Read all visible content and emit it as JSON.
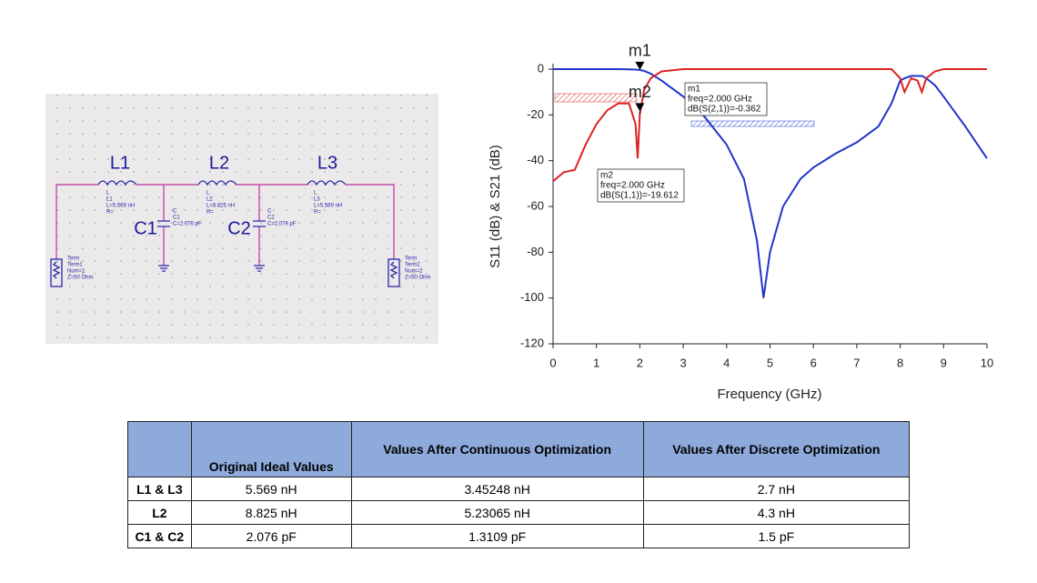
{
  "schematic": {
    "labels": [
      "L1",
      "L2",
      "L3",
      "C1",
      "C2"
    ],
    "L1": [
      "L",
      "L1",
      "L=5.569 nH",
      "R="
    ],
    "L2": [
      "L",
      "L2",
      "L=8.825 nH",
      "R="
    ],
    "L3": [
      "L",
      "L3",
      "L=5.569 nH",
      "R="
    ],
    "C1": [
      "C",
      "C1",
      "C=2.076 pF"
    ],
    "C2": [
      "C",
      "C2",
      "C=2.076 pF"
    ],
    "Term1": [
      "Term",
      "Term1",
      "Num=1",
      "Z=50 Ohm"
    ],
    "Term2": [
      "Term",
      "Term2",
      "Num=2",
      "Z=50 Ohm"
    ]
  },
  "chart_data": {
    "type": "line",
    "xlabel": "Frequency (GHz)",
    "ylabel": "S11 (dB) & S21 (dB)",
    "x": [
      0,
      0.25,
      0.5,
      0.75,
      1,
      1.25,
      1.5,
      1.75,
      1.9,
      1.95,
      2,
      2.1,
      2.25,
      2.5,
      3,
      3.5,
      4,
      4.4,
      4.7,
      4.85,
      5,
      5.3,
      5.7,
      6,
      6.5,
      7,
      7.5,
      7.8,
      8,
      8.1,
      8.25,
      8.4,
      8.5,
      8.6,
      8.8,
      9,
      9.5,
      10
    ],
    "series": [
      {
        "color": "#2233cc",
        "values": [
          0,
          0,
          0,
          0,
          0,
          0,
          0,
          -0.1,
          -0.2,
          -0.3,
          -0.362,
          -0.8,
          -2,
          -5,
          -12,
          -21,
          -33,
          -48,
          -75,
          -100,
          -80,
          -60,
          -48,
          -43,
          -37,
          -32,
          -25,
          -15,
          -5,
          -4,
          -3,
          -3,
          -3,
          -4,
          -7,
          -12,
          -25,
          -39
        ]
      },
      {
        "color": "#dd2222",
        "values": [
          -49,
          -45,
          -44,
          -33,
          -24,
          -18,
          -15,
          -15,
          -24,
          -39,
          -19.612,
          -9,
          -4,
          -1,
          0,
          0,
          0,
          0,
          0,
          0,
          0,
          0,
          0,
          0,
          0,
          0,
          0,
          0,
          -4,
          -10,
          -4,
          -5,
          -10,
          -4,
          -1,
          0,
          0,
          0
        ]
      }
    ],
    "xlim": [
      0,
      10
    ],
    "xticks": [
      0,
      1,
      2,
      3,
      4,
      5,
      6,
      7,
      8,
      9,
      10
    ],
    "ylim": [
      -120,
      0
    ],
    "yticks": [
      -120,
      -100,
      -80,
      -60,
      -40,
      -20,
      0
    ],
    "grid": false,
    "markers": [
      {
        "label": "m1",
        "series": 0,
        "index": 10,
        "lines": [
          "m1",
          "freq=2.000 GHz",
          "dB(S(2,1))=-0.362"
        ]
      },
      {
        "label": "m2",
        "series": 1,
        "index": 10,
        "lines": [
          "m2",
          "freq=2.000 GHz",
          "dB(S(1,1))=-19.612"
        ]
      }
    ]
  },
  "table": {
    "header": [
      "",
      "Original Ideal Values",
      "Values After Continuous Optimization",
      "Values After Discrete Optimization"
    ],
    "rows": [
      [
        "L1 & L3",
        "5.569 nH",
        "3.45248 nH",
        "2.7 nH"
      ],
      [
        "L2",
        "8.825 nH",
        "5.23065 nH",
        "4.3 nH"
      ],
      [
        "C1 & C2",
        "2.076 pF",
        "1.3109 pF",
        "1.5 pF"
      ]
    ]
  }
}
